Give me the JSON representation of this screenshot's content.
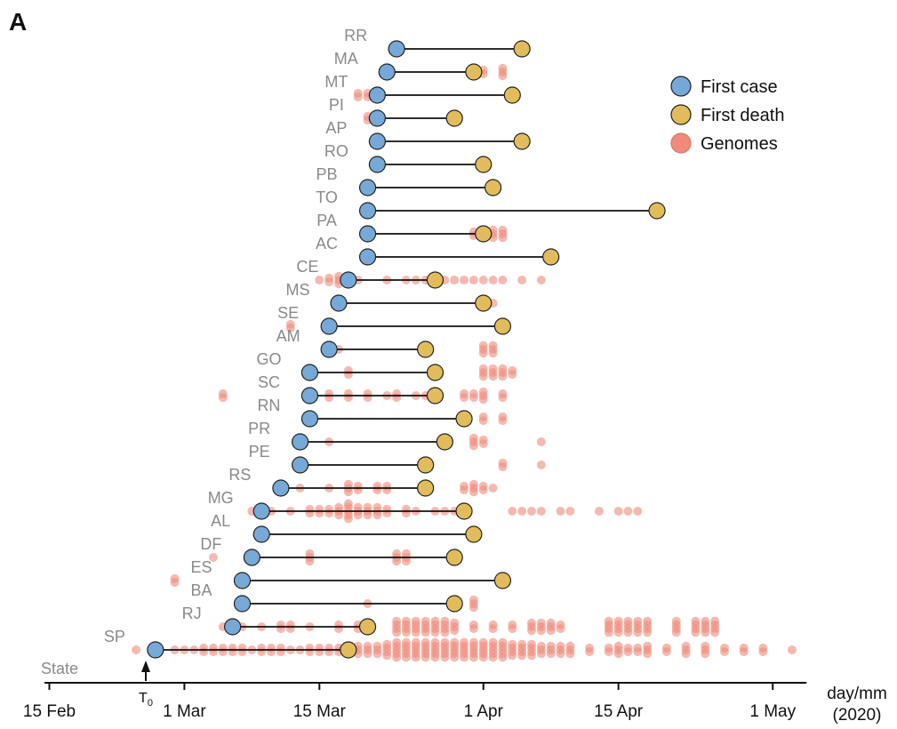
{
  "chart_data": {
    "type": "scatter",
    "panel_label": "A",
    "x_unit": "days since T0 (T0 = 26 Feb 2020)",
    "xlim": [
      -10.5,
      68.5
    ],
    "x_ticks": [
      {
        "x": -10,
        "label": "15 Feb"
      },
      {
        "x": 4,
        "label": "1 Mar"
      },
      {
        "x": 18,
        "label": "15 Mar"
      },
      {
        "x": 35,
        "label": "1 Apr"
      },
      {
        "x": 49,
        "label": "15 Apr"
      },
      {
        "x": 65,
        "label": "1 May"
      }
    ],
    "x_axis_title": [
      "day/mm",
      "(2020)"
    ],
    "y_axis_label": "State",
    "t0_marker": {
      "x": 0,
      "label": "T",
      "subscript": "0"
    },
    "legend": {
      "placement": "top-right",
      "entries": [
        {
          "label": "First case",
          "color": "#76a9d7"
        },
        {
          "label": "First death",
          "color": "#e2bc5c"
        },
        {
          "label": "Genomes",
          "color": "#ef8a7c"
        }
      ]
    },
    "colors": {
      "first_case": "#76a9d7",
      "first_death": "#e2bc5c",
      "genome": "#ef8a7c",
      "line": "#111111",
      "state_label": "#8a8a8a"
    },
    "states": [
      {
        "name": "SP",
        "first_case": 1,
        "first_death": 21,
        "genomes": [
          [
            -1,
            1
          ],
          [
            1,
            1
          ],
          [
            3,
            1
          ],
          [
            4,
            1
          ],
          [
            5,
            1
          ],
          [
            6,
            2
          ],
          [
            7,
            2
          ],
          [
            8,
            2
          ],
          [
            9,
            2
          ],
          [
            10,
            2
          ],
          [
            11,
            1
          ],
          [
            12,
            2
          ],
          [
            13,
            2
          ],
          [
            14,
            2
          ],
          [
            15,
            1
          ],
          [
            16,
            1
          ],
          [
            17,
            2
          ],
          [
            18,
            2
          ],
          [
            19,
            2
          ],
          [
            20,
            2
          ],
          [
            22,
            3
          ],
          [
            23,
            3
          ],
          [
            24,
            3
          ],
          [
            25,
            4
          ],
          [
            26,
            5
          ],
          [
            27,
            5
          ],
          [
            28,
            5
          ],
          [
            29,
            5
          ],
          [
            30,
            5
          ],
          [
            31,
            5
          ],
          [
            32,
            5
          ],
          [
            33,
            5
          ],
          [
            34,
            5
          ],
          [
            35,
            5
          ],
          [
            36,
            5
          ],
          [
            37,
            5
          ],
          [
            38,
            4
          ],
          [
            39,
            4
          ],
          [
            40,
            4
          ],
          [
            41,
            3
          ],
          [
            42,
            3
          ],
          [
            43,
            3
          ],
          [
            44,
            3
          ],
          [
            46,
            2
          ],
          [
            48,
            2
          ],
          [
            49,
            3
          ],
          [
            50,
            2
          ],
          [
            51,
            2
          ],
          [
            52,
            3
          ],
          [
            54,
            2
          ],
          [
            56,
            3
          ],
          [
            58,
            3
          ],
          [
            60,
            2
          ],
          [
            62,
            2
          ],
          [
            64,
            2
          ],
          [
            67,
            1
          ]
        ]
      },
      {
        "name": "RJ",
        "first_case": 9,
        "first_death": 23,
        "genomes": [
          [
            8,
            1
          ],
          [
            10,
            1
          ],
          [
            12,
            1
          ],
          [
            14,
            2
          ],
          [
            15,
            2
          ],
          [
            17,
            1
          ],
          [
            20,
            2
          ],
          [
            22,
            2
          ],
          [
            26,
            4
          ],
          [
            27,
            4
          ],
          [
            28,
            4
          ],
          [
            29,
            4
          ],
          [
            30,
            4
          ],
          [
            31,
            4
          ],
          [
            32,
            3
          ],
          [
            34,
            2
          ],
          [
            36,
            2
          ],
          [
            38,
            2
          ],
          [
            40,
            3
          ],
          [
            41,
            3
          ],
          [
            42,
            3
          ],
          [
            43,
            2
          ],
          [
            48,
            4
          ],
          [
            49,
            4
          ],
          [
            50,
            4
          ],
          [
            51,
            4
          ],
          [
            52,
            4
          ],
          [
            55,
            4
          ],
          [
            57,
            4
          ],
          [
            58,
            4
          ],
          [
            59,
            4
          ]
        ]
      },
      {
        "name": "BA",
        "first_case": 10,
        "first_death": 32,
        "genomes": [
          [
            23,
            1
          ],
          [
            34,
            3
          ]
        ]
      },
      {
        "name": "ES",
        "first_case": 10,
        "first_death": 37,
        "genomes": [
          [
            3,
            2
          ]
        ]
      },
      {
        "name": "DF",
        "first_case": 11,
        "first_death": 32,
        "genomes": [
          [
            7,
            1
          ],
          [
            17,
            3
          ],
          [
            26,
            3
          ],
          [
            27,
            3
          ]
        ]
      },
      {
        "name": "AL",
        "first_case": 12,
        "first_death": 34,
        "genomes": [
          [
            12,
            1
          ]
        ]
      },
      {
        "name": "MG",
        "first_case": 12,
        "first_death": 33,
        "genomes": [
          [
            11,
            1
          ],
          [
            13,
            1
          ],
          [
            15,
            1
          ],
          [
            17,
            2
          ],
          [
            18,
            2
          ],
          [
            19,
            2
          ],
          [
            20,
            3
          ],
          [
            21,
            5
          ],
          [
            22,
            3
          ],
          [
            23,
            3
          ],
          [
            24,
            3
          ],
          [
            25,
            2
          ],
          [
            27,
            2
          ],
          [
            28,
            1
          ],
          [
            30,
            1
          ],
          [
            31,
            1
          ],
          [
            32,
            1
          ],
          [
            38,
            1
          ],
          [
            39,
            1
          ],
          [
            40,
            1
          ],
          [
            41,
            1
          ],
          [
            43,
            1
          ],
          [
            44,
            1
          ],
          [
            47,
            1
          ],
          [
            49,
            1
          ],
          [
            50,
            1
          ],
          [
            51,
            1
          ]
        ]
      },
      {
        "name": "RS",
        "first_case": 14,
        "first_death": 29,
        "genomes": [
          [
            16,
            1
          ],
          [
            19,
            1
          ],
          [
            21,
            3
          ],
          [
            22,
            2
          ],
          [
            24,
            2
          ],
          [
            25,
            2
          ],
          [
            33,
            2
          ],
          [
            34,
            3
          ],
          [
            35,
            2
          ],
          [
            36,
            1
          ]
        ]
      },
      {
        "name": "PE",
        "first_case": 16,
        "first_death": 29,
        "genomes": [
          [
            37,
            2
          ],
          [
            41,
            1
          ]
        ]
      },
      {
        "name": "PR",
        "first_case": 16,
        "first_death": 31,
        "genomes": [
          [
            19,
            1
          ],
          [
            31,
            1
          ],
          [
            34,
            3
          ],
          [
            35,
            2
          ],
          [
            41,
            1
          ]
        ]
      },
      {
        "name": "RN",
        "first_case": 17,
        "first_death": 33,
        "genomes": [
          [
            35,
            2
          ],
          [
            37,
            2
          ]
        ]
      },
      {
        "name": "SC",
        "first_case": 17,
        "first_death": 30,
        "genomes": [
          [
            8,
            2
          ],
          [
            19,
            2
          ],
          [
            21,
            2
          ],
          [
            23,
            2
          ],
          [
            25,
            1
          ],
          [
            26,
            2
          ],
          [
            28,
            1
          ],
          [
            29,
            1
          ],
          [
            33,
            2
          ],
          [
            34,
            2
          ],
          [
            35,
            3
          ],
          [
            37,
            2
          ]
        ]
      },
      {
        "name": "GO",
        "first_case": 17,
        "first_death": 30,
        "genomes": [
          [
            21,
            2
          ],
          [
            35,
            3
          ],
          [
            36,
            3
          ],
          [
            37,
            3
          ],
          [
            38,
            2
          ]
        ]
      },
      {
        "name": "AM",
        "first_case": 19,
        "first_death": 29,
        "genomes": [
          [
            20,
            1
          ],
          [
            35,
            3
          ],
          [
            36,
            3
          ]
        ]
      },
      {
        "name": "SE",
        "first_case": 19,
        "first_death": 37,
        "genomes": [
          [
            15,
            2
          ]
        ]
      },
      {
        "name": "MS",
        "first_case": 20,
        "first_death": 35,
        "genomes": [
          [
            36,
            1
          ]
        ]
      },
      {
        "name": "CE",
        "first_case": 21,
        "first_death": 30,
        "genomes": [
          [
            18,
            1
          ],
          [
            19,
            2
          ],
          [
            20,
            3
          ],
          [
            22,
            1
          ],
          [
            25,
            1
          ],
          [
            27,
            1
          ],
          [
            28,
            1
          ],
          [
            29,
            1
          ],
          [
            31,
            1
          ],
          [
            32,
            1
          ],
          [
            33,
            1
          ],
          [
            34,
            1
          ],
          [
            35,
            1
          ],
          [
            36,
            1
          ],
          [
            37,
            1
          ],
          [
            39,
            1
          ],
          [
            41,
            1
          ]
        ]
      },
      {
        "name": "AC",
        "first_case": 23,
        "first_death": 42,
        "genomes": []
      },
      {
        "name": "PA",
        "first_case": 23,
        "first_death": 35,
        "genomes": [
          [
            34,
            2
          ],
          [
            35,
            3
          ],
          [
            36,
            3
          ],
          [
            37,
            3
          ]
        ]
      },
      {
        "name": "TO",
        "first_case": 23,
        "first_death": 53,
        "genomes": []
      },
      {
        "name": "PB",
        "first_case": 23,
        "first_death": 36,
        "genomes": []
      },
      {
        "name": "RO",
        "first_case": 24,
        "first_death": 35,
        "genomes": []
      },
      {
        "name": "AP",
        "first_case": 24,
        "first_death": 39,
        "genomes": []
      },
      {
        "name": "PI",
        "first_case": 24,
        "first_death": 32,
        "genomes": [
          [
            23,
            2
          ]
        ]
      },
      {
        "name": "MT",
        "first_case": 24,
        "first_death": 38,
        "genomes": [
          [
            22,
            2
          ],
          [
            23,
            2
          ]
        ]
      },
      {
        "name": "MA",
        "first_case": 25,
        "first_death": 34,
        "genomes": [
          [
            34,
            1
          ],
          [
            35,
            2
          ],
          [
            37,
            3
          ]
        ]
      },
      {
        "name": "RR",
        "first_case": 26,
        "first_death": 39,
        "genomes": []
      }
    ]
  }
}
